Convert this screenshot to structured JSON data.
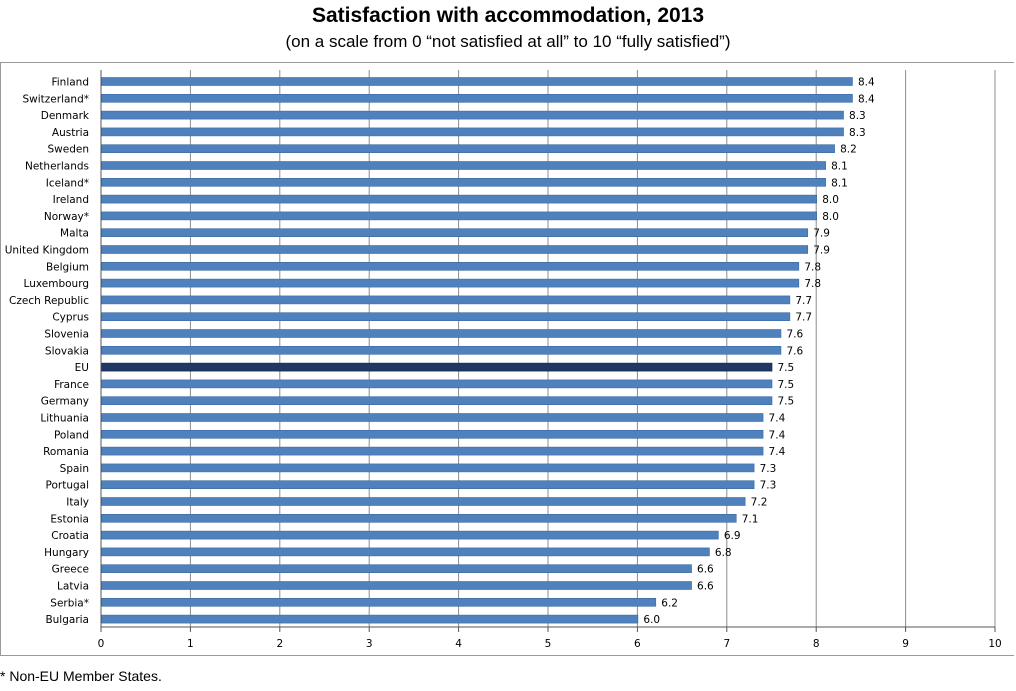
{
  "header": {
    "title": "Satisfaction with accommodation, 2013",
    "subtitle": "(on a scale from 0 “not satisfied at all” to 10 “fully satisfied”)"
  },
  "footnote": "* Non-EU Member States.",
  "colors": {
    "bar": "#4f81bd",
    "bar_edge": "#3a6aa6",
    "highlight_bar": "#1f3864",
    "gridline": "#8c8c8c"
  },
  "chart_data": {
    "type": "bar",
    "orientation": "horizontal",
    "title": "Satisfaction with accommodation, 2013",
    "subtitle": "(on a scale from 0 “not satisfied at all” to 10 “fully satisfied”)",
    "xlabel": "",
    "ylabel": "",
    "xlim": [
      0,
      10
    ],
    "xticks": [
      0,
      1,
      2,
      3,
      4,
      5,
      6,
      7,
      8,
      9,
      10
    ],
    "grid": "vertical",
    "highlight": "EU",
    "categories": [
      "Finland",
      "Switzerland*",
      "Denmark",
      "Austria",
      "Sweden",
      "Netherlands",
      "Iceland*",
      "Ireland",
      "Norway*",
      "Malta",
      "United Kingdom",
      "Belgium",
      "Luxembourg",
      "Czech Republic",
      "Cyprus",
      "Slovenia",
      "Slovakia",
      "EU",
      "France",
      "Germany",
      "Lithuania",
      "Poland",
      "Romania",
      "Spain",
      "Portugal",
      "Italy",
      "Estonia",
      "Croatia",
      "Hungary",
      "Greece",
      "Latvia",
      "Serbia*",
      "Bulgaria"
    ],
    "values": [
      8.4,
      8.4,
      8.3,
      8.3,
      8.2,
      8.1,
      8.1,
      8.0,
      8.0,
      7.9,
      7.9,
      7.8,
      7.8,
      7.7,
      7.7,
      7.6,
      7.6,
      7.5,
      7.5,
      7.5,
      7.4,
      7.4,
      7.4,
      7.3,
      7.3,
      7.2,
      7.1,
      6.9,
      6.8,
      6.6,
      6.6,
      6.2,
      6.0
    ],
    "value_labels": [
      "8.4",
      "8.4",
      "8.3",
      "8.3",
      "8.2",
      "8.1",
      "8.1",
      "8.0",
      "8.0",
      "7.9",
      "7.9",
      "7.8",
      "7.8",
      "7.7",
      "7.7",
      "7.6",
      "7.6",
      "7.5",
      "7.5",
      "7.5",
      "7.4",
      "7.4",
      "7.4",
      "7.3",
      "7.3",
      "7.2",
      "7.1",
      "6.9",
      "6.8",
      "6.6",
      "6.6",
      "6.2",
      "6.0"
    ]
  }
}
